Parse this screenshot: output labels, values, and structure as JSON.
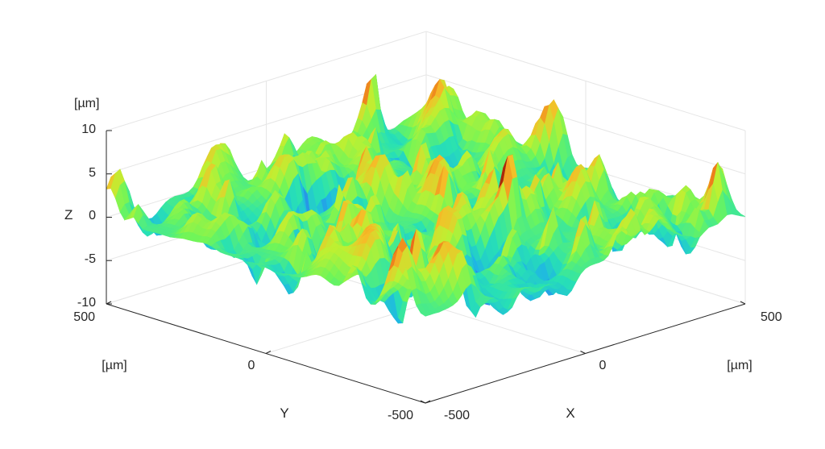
{
  "chart_data": {
    "type": "surface",
    "title": "",
    "xlabel": "X",
    "ylabel": "Y",
    "zlabel": "Z",
    "units": {
      "x": "[µm]",
      "y": "[µm]",
      "z": "[µm]"
    },
    "xlim": [
      -500,
      500
    ],
    "ylim": [
      -500,
      500
    ],
    "zlim": [
      -10,
      10
    ],
    "x_ticks": [
      "-500",
      "0",
      "500"
    ],
    "y_ticks": [
      "-500",
      "0",
      "500"
    ],
    "z_ticks": [
      "-10",
      "-5",
      "0",
      "5",
      "10"
    ],
    "z_range_estimate": [
      -8,
      9
    ],
    "colormap": "turbo",
    "colors": {
      "low": "#3b4cc0",
      "mid_low": "#1ec8d8",
      "mid": "#7cf05a",
      "mid_high": "#f0d030",
      "high": "#c0400a"
    },
    "grid": true,
    "surface_description_values": {
      "mean_height": 0,
      "peak_max": 9,
      "valley_min": -8
    }
  }
}
